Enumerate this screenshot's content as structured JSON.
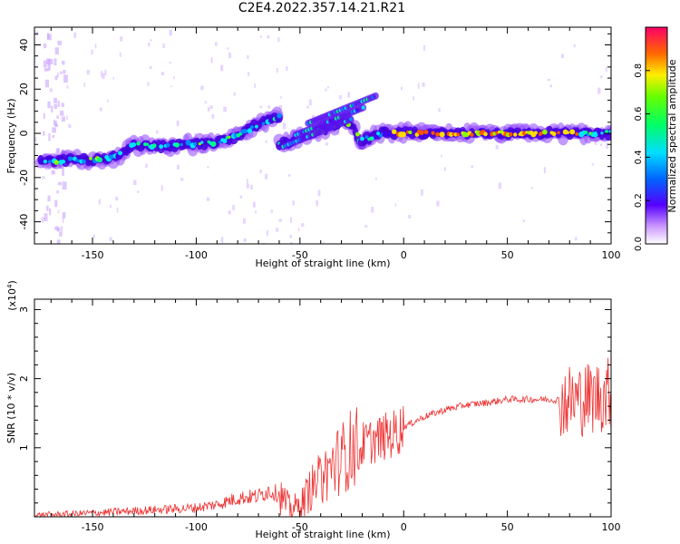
{
  "title": "C2E4.2022.357.14.21.R21",
  "chart_data": [
    {
      "type": "heatmap",
      "xlabel": "Height of straight line (km)",
      "ylabel": "Frequency (Hz)",
      "xlim": [
        -178,
        100
      ],
      "ylim": [
        -50,
        48
      ],
      "xticks": [
        -150,
        -100,
        -50,
        0,
        50,
        100
      ],
      "yticks": [
        -40,
        -20,
        0,
        20,
        40
      ],
      "colorbar": {
        "label": "Normalized spectral amplitude",
        "range": [
          0,
          1
        ],
        "ticks": [
          "0.0",
          "0.2",
          "0.4",
          "0.6",
          "0.8"
        ]
      },
      "ridges": [
        {
          "x": [
            -175,
            -160,
            -150,
            -140,
            -130,
            -120,
            -110,
            -100,
            -90,
            -80,
            -70,
            -60
          ],
          "y": [
            -13,
            -12,
            -12,
            -11,
            -5,
            -6,
            -5,
            -5,
            -4,
            -1,
            4,
            8
          ]
        },
        {
          "x": [
            -60,
            -50,
            -40,
            -30,
            -25,
            -20
          ],
          "y": [
            -5,
            -2,
            1,
            5,
            4,
            -5
          ]
        },
        {
          "x": [
            -20,
            -10,
            0,
            20,
            50,
            80,
            100
          ],
          "y": [
            -3,
            0,
            0,
            0,
            0,
            0,
            0
          ]
        }
      ]
    },
    {
      "type": "line",
      "xlabel": "Height of straight line (km)",
      "ylabel": "SNR (10 * v/v)",
      "multiplier_label": "(x10",
      "multiplier_exp": "4",
      "xlim": [
        -178,
        100
      ],
      "ylim": [
        0,
        3.15
      ],
      "xticks": [
        -150,
        -100,
        -50,
        0,
        50,
        100
      ],
      "yticks": [
        1,
        2,
        3
      ],
      "series": [
        {
          "color": "#ee3333",
          "x": [
            -178,
            -160,
            -140,
            -120,
            -100,
            -90,
            -80,
            -70,
            -65,
            -60,
            -55,
            -50,
            -45,
            -40,
            -35,
            -30,
            -25,
            -20,
            -15,
            -10,
            -5,
            0,
            10,
            20,
            30,
            40,
            50,
            60,
            70,
            80,
            85,
            90,
            95,
            100
          ],
          "y": [
            0.02,
            0.04,
            0.07,
            0.1,
            0.13,
            0.18,
            0.27,
            0.3,
            0.38,
            0.33,
            0.12,
            0.15,
            0.4,
            0.55,
            0.72,
            0.85,
            1.0,
            1.05,
            1.1,
            1.15,
            1.2,
            1.3,
            1.45,
            1.55,
            1.62,
            1.65,
            1.7,
            1.7,
            1.7,
            1.68,
            1.7,
            1.72,
            1.75,
            1.8
          ]
        }
      ]
    }
  ]
}
